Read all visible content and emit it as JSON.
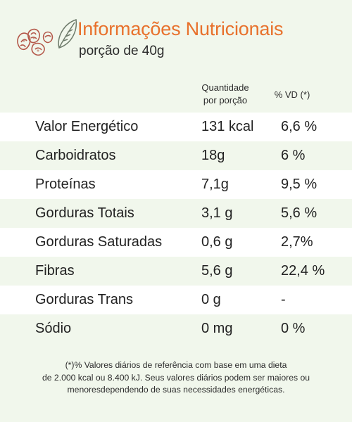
{
  "header": {
    "title": "Informações Nutricionais",
    "serving": "porção de 40g"
  },
  "columns": {
    "quantity_line1": "Quantidade",
    "quantity_line2": "por porção",
    "daily_value": "% VD (*)"
  },
  "rows": [
    {
      "name": "Valor Energético",
      "quantity": "131 kcal",
      "dv": "6,6 %"
    },
    {
      "name": "Carboidratos",
      "quantity": "18g",
      "dv": "6 %"
    },
    {
      "name": "Proteínas",
      "quantity": "7,1g",
      "dv": "9,5 %"
    },
    {
      "name": "Gorduras Totais",
      "quantity": "3,1 g",
      "dv": "5,6 %"
    },
    {
      "name": "Gorduras Saturadas",
      "quantity": "0,6 g",
      "dv": "2,7%"
    },
    {
      "name": "Fibras",
      "quantity": "5,6 g",
      "dv": "22,4 %"
    },
    {
      "name": "Gorduras Trans",
      "quantity": "0 g",
      "dv": "-"
    },
    {
      "name": "Sódio",
      "quantity": "0 mg",
      "dv": "0 %"
    }
  ],
  "footnote": {
    "line1": "(*)% Valores diários de referência com base em uma dieta",
    "line2": "de 2.000 kcal ou 8.400 kJ. Seus valores diários podem ser maiores ou",
    "line3": "menoresdependendo de suas necessidades energéticas."
  },
  "colors": {
    "title": "#e8712c",
    "background": "#f1f7ec",
    "row_alt": "#ffffff",
    "nut_outline": "#b4584a",
    "leaf_outline": "#6d7a6a"
  },
  "icons": [
    "nuts-icon",
    "leaf-icon"
  ]
}
